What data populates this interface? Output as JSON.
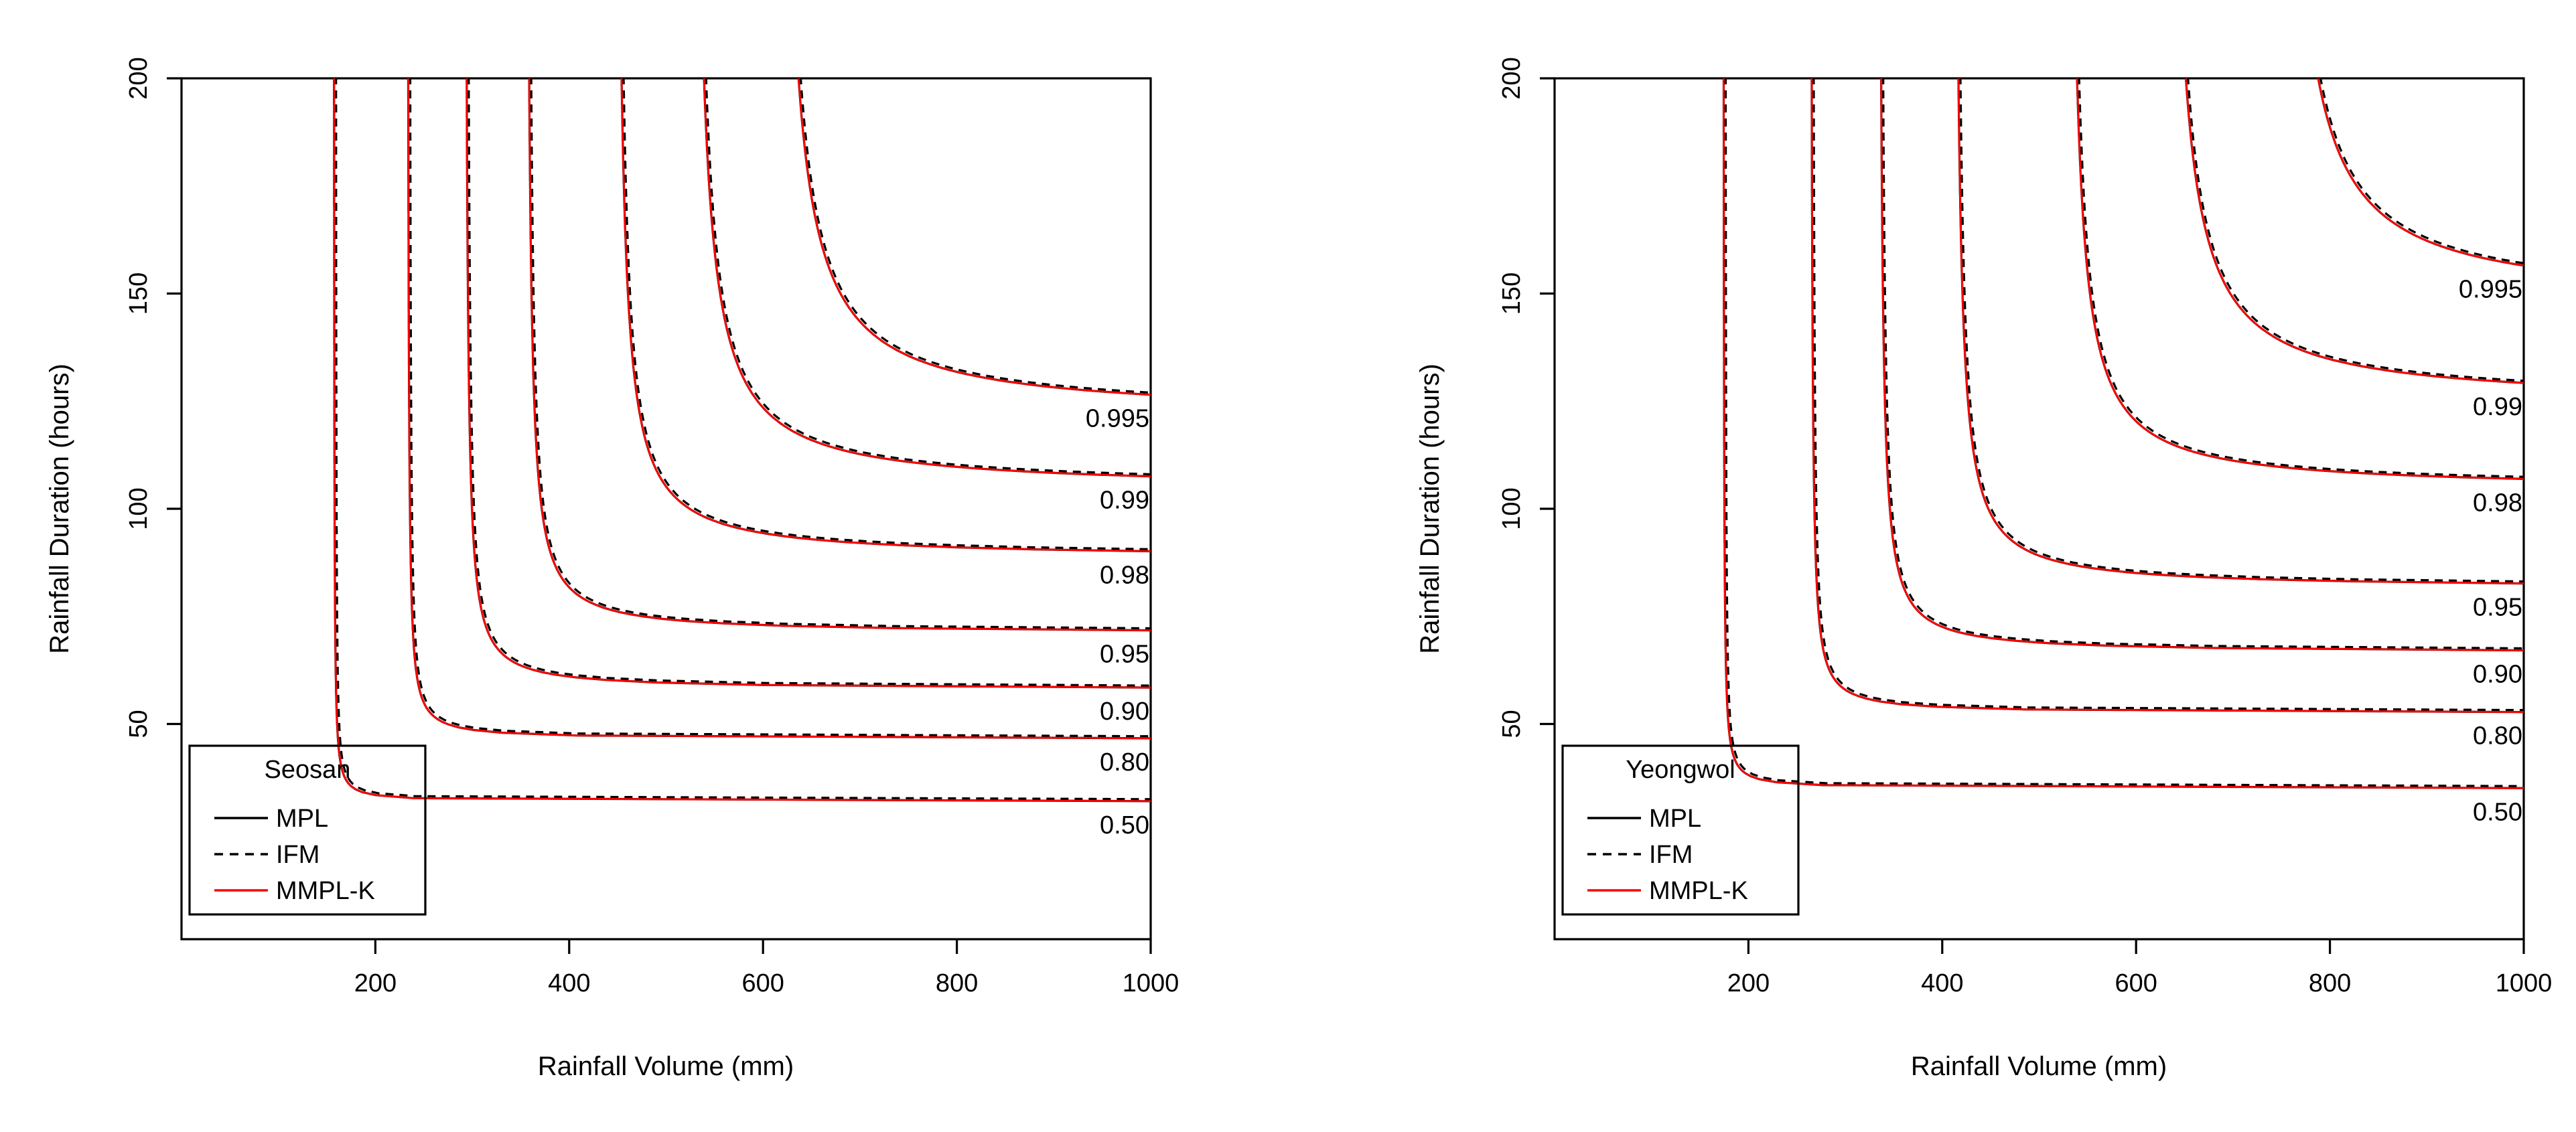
{
  "colors": {
    "mpl": "#000000",
    "ifm": "#000000",
    "mmplk": "#ff0000",
    "background": "#ffffff"
  },
  "chart_data": [
    {
      "type": "line",
      "title": "Seosan",
      "xlabel": "Rainfall Volume (mm)",
      "ylabel": "Rainfall Duration (hours)",
      "xlim": [
        0,
        1000
      ],
      "ylim": [
        0,
        200
      ],
      "xticks": [
        200,
        400,
        600,
        800,
        1000
      ],
      "yticks": [
        50,
        100,
        150,
        200
      ],
      "legend": {
        "title": "Seosan",
        "position": "bottom-left",
        "entries": [
          "MPL",
          "IFM",
          "MMPL-K"
        ]
      },
      "series": [
        {
          "name": "MPL",
          "style": "solid",
          "color": "#000000"
        },
        {
          "name": "IFM",
          "style": "dashed",
          "color": "#000000"
        },
        {
          "name": "MMPL-K",
          "style": "solid",
          "color": "#ff0000"
        }
      ],
      "contours": [
        {
          "label": "0.50",
          "x_asymptote": 157,
          "y_asymptote": 32,
          "knee": 8
        },
        {
          "label": "0.80",
          "x_asymptote": 233,
          "y_asymptote": 46.5,
          "knee": 12
        },
        {
          "label": "0.90",
          "x_asymptote": 292,
          "y_asymptote": 58,
          "knee": 18
        },
        {
          "label": "0.95",
          "x_asymptote": 355,
          "y_asymptote": 71,
          "knee": 22
        },
        {
          "label": "0.98",
          "x_asymptote": 446,
          "y_asymptote": 88.5,
          "knee": 30
        },
        {
          "label": "0.99",
          "x_asymptote": 524,
          "y_asymptote": 104.5,
          "knee": 38
        },
        {
          "label": "0.995",
          "x_asymptote": 612,
          "y_asymptote": 121.5,
          "knee": 44
        }
      ]
    },
    {
      "type": "line",
      "title": "Yeongwol",
      "xlabel": "Rainfall Volume (mm)",
      "ylabel": "Rainfall Duration (hours)",
      "xlim": [
        0,
        1000
      ],
      "ylim": [
        0,
        200
      ],
      "xticks": [
        200,
        400,
        600,
        800,
        1000
      ],
      "yticks": [
        50,
        100,
        150,
        200
      ],
      "legend": {
        "title": "Yeongwol",
        "position": "bottom-left",
        "entries": [
          "MPL",
          "IFM",
          "MMPL-K"
        ]
      },
      "series": [
        {
          "name": "MPL",
          "style": "solid",
          "color": "#000000"
        },
        {
          "name": "IFM",
          "style": "dashed",
          "color": "#000000"
        },
        {
          "name": "MMPL-K",
          "style": "solid",
          "color": "#ff0000"
        }
      ],
      "contours": [
        {
          "label": "0.50",
          "x_asymptote": 174,
          "y_asymptote": 35,
          "knee": 9
        },
        {
          "label": "0.80",
          "x_asymptote": 264,
          "y_asymptote": 52.5,
          "knee": 14
        },
        {
          "label": "0.90",
          "x_asymptote": 334,
          "y_asymptote": 66.5,
          "knee": 20
        },
        {
          "label": "0.95",
          "x_asymptote": 411,
          "y_asymptote": 81.5,
          "knee": 26
        },
        {
          "label": "0.98",
          "x_asymptote": 527,
          "y_asymptote": 104.5,
          "knee": 34
        },
        {
          "label": "0.99",
          "x_asymptote": 628,
          "y_asymptote": 124.5,
          "knee": 42
        },
        {
          "label": "0.995",
          "x_asymptote": 744,
          "y_asymptote": 147.5,
          "knee": 48
        }
      ]
    }
  ]
}
